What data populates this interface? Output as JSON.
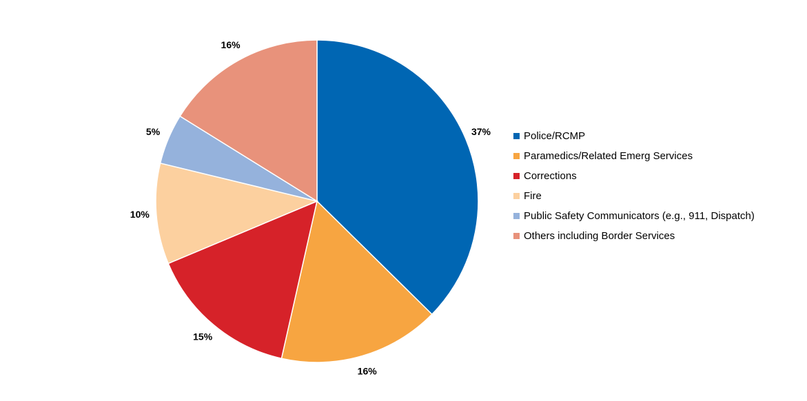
{
  "chart_data": {
    "type": "pie",
    "title": "",
    "start_angle_deg": 0,
    "direction": "clockwise",
    "legend_position": "right",
    "slices": [
      {
        "label": "Police/RCMP",
        "value": 37,
        "display": "37%",
        "color": "#0066B3"
      },
      {
        "label": "Paramedics/Related Emerg Services",
        "value": 16,
        "display": "16%",
        "color": "#F7A541"
      },
      {
        "label": "Corrections",
        "value": 15,
        "display": "15%",
        "color": "#D62229"
      },
      {
        "label": "Fire",
        "value": 10,
        "display": "10%",
        "color": "#FCD09F"
      },
      {
        "label": "Public Safety Communicators (e.g., 911, Dispatch)",
        "value": 5,
        "display": "5%",
        "color": "#95B2DC"
      },
      {
        "label": "Others including Border Services",
        "value": 16,
        "display": "16%",
        "color": "#E8927B"
      }
    ]
  }
}
